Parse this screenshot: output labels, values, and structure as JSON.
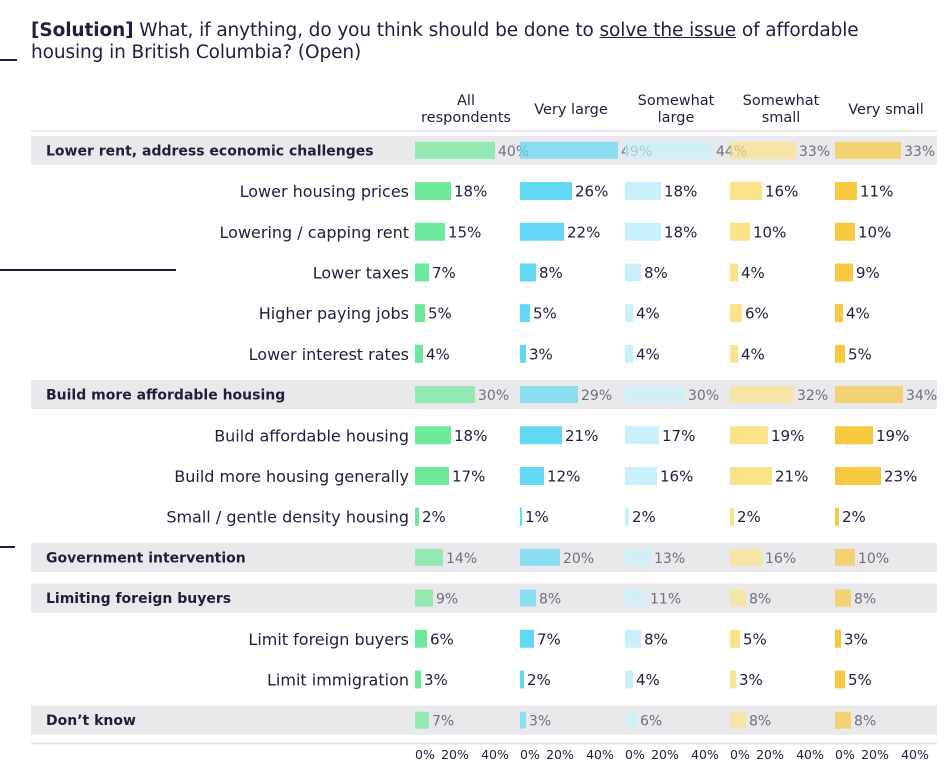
{
  "title": {
    "tag": "[Solution]",
    "pre": " What, if anything, do you think should be done to ",
    "underlined": "solve the issue",
    "post": " of affordable housing in British Columbia? (Open)"
  },
  "colors": {
    "all": "#6ee89a",
    "very_large": "#62d8f4",
    "somewhat_large": "#c9f1fb",
    "somewhat_small": "#fbe38a",
    "very_small": "#f7c840",
    "group_band": "#e9e9ec",
    "text": "#1f1f3a"
  },
  "chart_data": {
    "type": "bar",
    "series": [
      {
        "name": "All\nrespondents"
      },
      {
        "name": "Very large"
      },
      {
        "name": "Somewhat\nlarge"
      },
      {
        "name": "Somewhat\nsmall"
      },
      {
        "name": "Very small"
      }
    ],
    "xlim": [
      0,
      50
    ],
    "tick_labels": [
      "0%",
      "20%",
      "40%"
    ],
    "rows": [
      {
        "label": "Lower rent, address economic challenges",
        "group": true,
        "values": [
          40,
          49,
          44,
          33,
          33
        ]
      },
      {
        "label": "Lower housing prices",
        "group": false,
        "values": [
          18,
          26,
          18,
          16,
          11
        ]
      },
      {
        "label": "Lowering / capping rent",
        "group": false,
        "values": [
          15,
          22,
          18,
          10,
          10
        ]
      },
      {
        "label": "Lower taxes",
        "group": false,
        "values": [
          7,
          8,
          8,
          4,
          9
        ]
      },
      {
        "label": "Higher paying jobs",
        "group": false,
        "values": [
          5,
          5,
          4,
          6,
          4
        ]
      },
      {
        "label": "Lower interest rates",
        "group": false,
        "values": [
          4,
          3,
          4,
          4,
          5
        ]
      },
      {
        "label": "Build more affordable housing",
        "group": true,
        "values": [
          30,
          29,
          30,
          32,
          34
        ]
      },
      {
        "label": "Build affordable housing",
        "group": false,
        "values": [
          18,
          21,
          17,
          19,
          19
        ]
      },
      {
        "label": "Build more housing generally",
        "group": false,
        "values": [
          17,
          12,
          16,
          21,
          23
        ]
      },
      {
        "label": "Small / gentle density housing",
        "group": false,
        "values": [
          2,
          1,
          2,
          2,
          2
        ]
      },
      {
        "label": "Government intervention",
        "group": true,
        "values": [
          14,
          20,
          13,
          16,
          10
        ]
      },
      {
        "label": "Limiting foreign buyers",
        "group": true,
        "values": [
          9,
          8,
          11,
          8,
          8
        ]
      },
      {
        "label": "Limit foreign buyers",
        "group": false,
        "values": [
          6,
          7,
          8,
          5,
          3
        ]
      },
      {
        "label": "Limit immigration",
        "group": false,
        "values": [
          3,
          2,
          4,
          3,
          5
        ]
      },
      {
        "label": "Don’t know",
        "group": true,
        "values": [
          7,
          3,
          6,
          8,
          8
        ]
      }
    ]
  }
}
